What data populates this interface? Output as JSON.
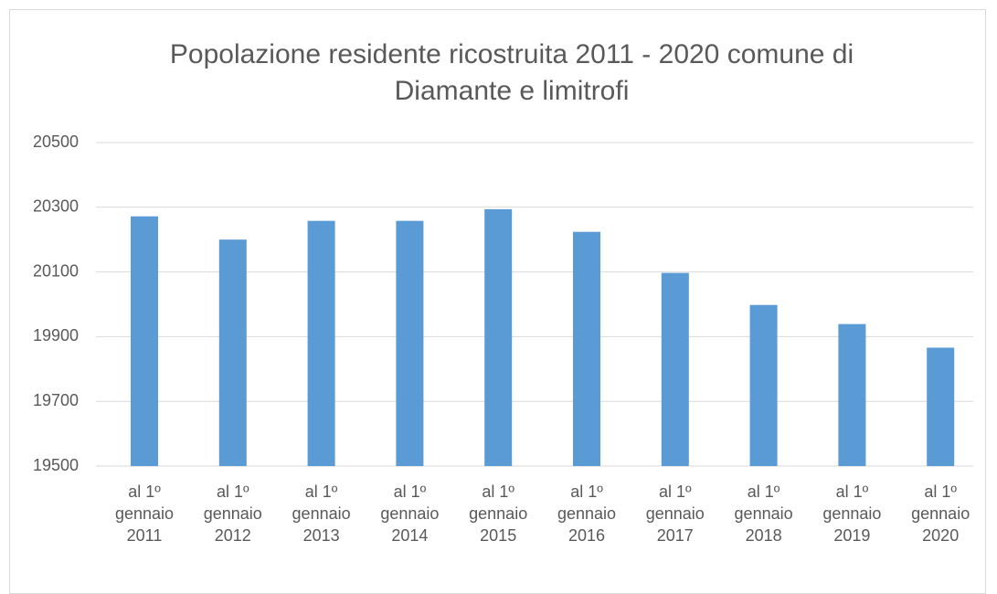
{
  "chart_data": {
    "type": "bar",
    "title": "Popolazione residente ricostruita 2011 - 2020  comune di Diamante e limitrofi",
    "categories": [
      "al 1º gennaio 2011",
      "al 1º gennaio 2012",
      "al 1º gennaio 2013",
      "al 1º gennaio 2014",
      "al 1º gennaio 2015",
      "al 1º gennaio 2016",
      "al 1º gennaio 2017",
      "al 1º gennaio 2018",
      "al 1º gennaio 2019",
      "al 1º gennaio 2020"
    ],
    "values": [
      20272,
      20200,
      20258,
      20258,
      20294,
      20224,
      20097,
      19998,
      19939,
      19866
    ],
    "color": "#5b9bd5",
    "ylim": [
      19500,
      20500
    ],
    "yticks": [
      19500,
      19700,
      19900,
      20100,
      20300,
      20500
    ],
    "grid": true
  }
}
